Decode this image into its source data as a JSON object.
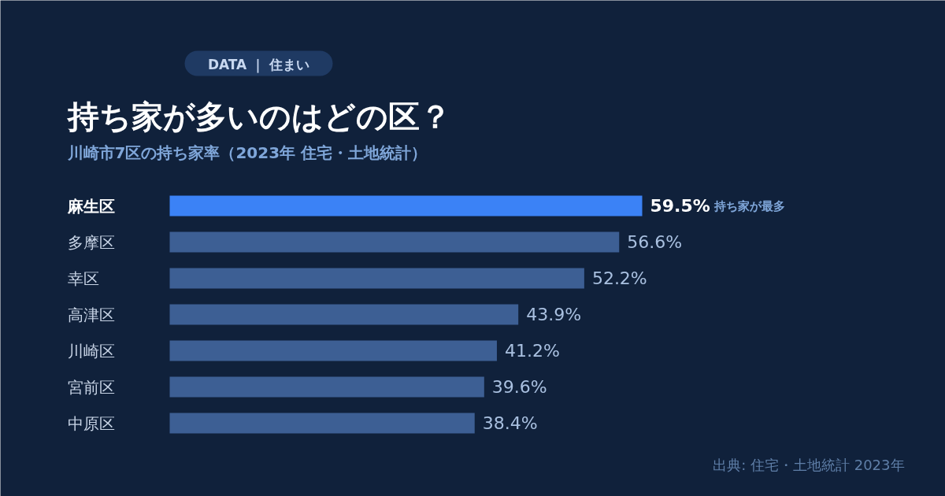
{
  "chart_data": {
    "type": "bar",
    "orientation": "horizontal",
    "title": "持ち家が多いのはどの区？",
    "subtitle": "川崎市7区の持ち家率（2023年 住宅・土地統計）",
    "categories": [
      "麻生区",
      "多摩区",
      "幸区",
      "高津区",
      "川崎区",
      "宮前区",
      "中原区"
    ],
    "values": [
      59.5,
      56.6,
      52.2,
      43.9,
      41.2,
      39.6,
      38.4
    ],
    "value_labels": [
      "59.5%",
      "56.6%",
      "52.2%",
      "43.9%",
      "41.2%",
      "39.6%",
      "38.4%"
    ],
    "colors": [
      "#3b82f6",
      "#3d5f94",
      "#3d5f94",
      "#3d5f94",
      "#3d5f94",
      "#3d5f94",
      "#3d5f94"
    ],
    "annotations": [
      "持ち家が最多",
      "DATA ｜ 住まい",
      "出典: 住宅・土地統計 2023年"
    ]
  }
}
